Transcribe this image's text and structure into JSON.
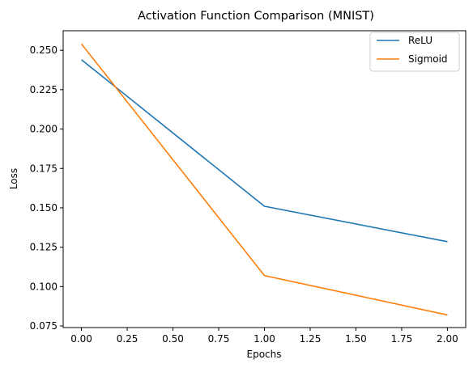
{
  "chart_data": {
    "type": "line",
    "title": "Activation Function Comparison (MNIST)",
    "xlabel": "Epochs",
    "ylabel": "Loss",
    "x": [
      0,
      1,
      2
    ],
    "xlim": [
      -0.1,
      2.1
    ],
    "ylim": [
      0.074,
      0.2624
    ],
    "xticks": [
      0.0,
      0.25,
      0.5,
      0.75,
      1.0,
      1.25,
      1.5,
      1.75,
      2.0
    ],
    "xtick_labels": [
      "0.00",
      "0.25",
      "0.50",
      "0.75",
      "1.00",
      "1.25",
      "1.50",
      "1.75",
      "2.00"
    ],
    "yticks": [
      0.075,
      0.1,
      0.125,
      0.15,
      0.175,
      0.2,
      0.225,
      0.25
    ],
    "ytick_labels": [
      "0.075",
      "0.100",
      "0.125",
      "0.150",
      "0.175",
      "0.200",
      "0.225",
      "0.250"
    ],
    "grid": false,
    "legend_position": "top-right",
    "series": [
      {
        "name": "ReLU",
        "color": "#1f77b4",
        "values": [
          0.244,
          0.151,
          0.1285
        ]
      },
      {
        "name": "Sigmoid",
        "color": "#ff7f0e",
        "values": [
          0.254,
          0.107,
          0.082
        ]
      }
    ]
  }
}
